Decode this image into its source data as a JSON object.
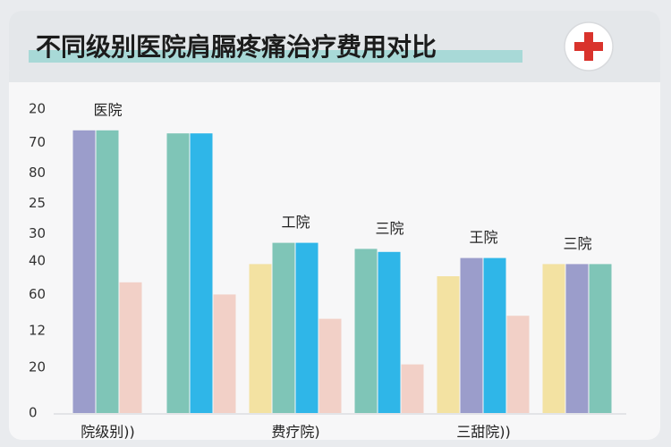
{
  "chart_data": {
    "type": "bar",
    "title": "不同级别医院肩膈疼痛治疗费用对比",
    "categories": [
      "院级别))",
      null,
      "费疗院)",
      null,
      "三甜院))",
      null
    ],
    "group_labels": [
      "医院",
      null,
      "工院",
      "三院",
      "王院",
      "三院"
    ],
    "series": [
      {
        "color": "#f3e2a2",
        "values": [
          null,
          null,
          49,
          null,
          45,
          49
        ]
      },
      {
        "color": "#9b9dcb",
        "values": [
          93,
          null,
          null,
          null,
          51,
          49
        ]
      },
      {
        "color": "#7fc5b7",
        "values": [
          93,
          92,
          56,
          54,
          null,
          49
        ]
      },
      {
        "color": "#2fb6e8",
        "values": [
          null,
          92,
          56,
          53,
          51,
          null
        ]
      },
      {
        "color": "#f2d0c7",
        "values": [
          43,
          39,
          31,
          16,
          32,
          null
        ]
      }
    ],
    "ylim": [
      0,
      100
    ],
    "yticks": [
      {
        "value": 100,
        "label": "20"
      },
      {
        "value": 89,
        "label": "70"
      },
      {
        "value": 79,
        "label": "80"
      },
      {
        "value": 69,
        "label": "25"
      },
      {
        "value": 59,
        "label": "30"
      },
      {
        "value": 50,
        "label": "40"
      },
      {
        "value": 39,
        "label": "60"
      },
      {
        "value": 27,
        "label": "12"
      },
      {
        "value": 15,
        "label": "20"
      },
      0
    ],
    "grid": false
  }
}
